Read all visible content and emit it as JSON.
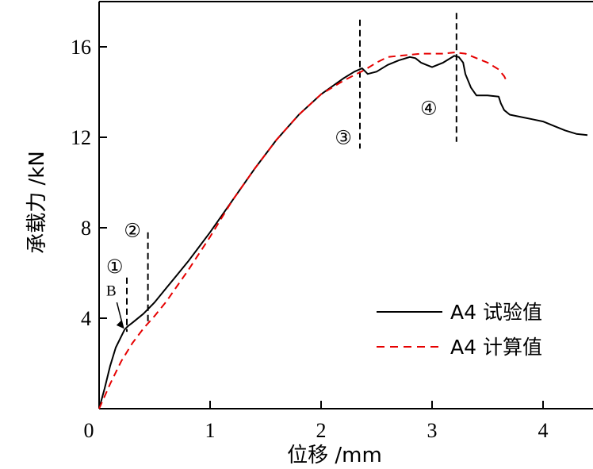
{
  "chart_data": {
    "type": "line",
    "title": "",
    "xlabel": "位移 /mm",
    "ylabel": "承载力 /kN",
    "xlim": [
      0,
      4.45
    ],
    "ylim": [
      0,
      18
    ],
    "xticks": [
      0,
      1,
      2,
      3,
      4
    ],
    "yticks": [
      4,
      8,
      12,
      16
    ],
    "legend_position": "bottom-right",
    "series": [
      {
        "name": "A4 试验值",
        "color": "#000000",
        "style": "solid",
        "x": [
          0,
          0.05,
          0.1,
          0.15,
          0.2,
          0.23,
          0.26,
          0.3,
          0.4,
          0.5,
          0.6,
          0.7,
          0.8,
          1.0,
          1.2,
          1.4,
          1.6,
          1.8,
          2.0,
          2.2,
          2.3,
          2.37,
          2.42,
          2.5,
          2.6,
          2.7,
          2.8,
          2.85,
          2.9,
          2.95,
          3.0,
          3.1,
          3.2,
          3.24,
          3.28,
          3.3,
          3.35,
          3.4,
          3.5,
          3.6,
          3.62,
          3.65,
          3.7,
          3.8,
          3.9,
          4.0,
          4.1,
          4.2,
          4.3,
          4.4
        ],
        "y": [
          0,
          0.9,
          1.9,
          2.7,
          3.2,
          3.5,
          3.65,
          3.8,
          4.2,
          4.7,
          5.3,
          5.9,
          6.5,
          7.8,
          9.2,
          10.6,
          11.9,
          13.0,
          13.9,
          14.6,
          14.9,
          15.05,
          14.8,
          14.9,
          15.2,
          15.4,
          15.55,
          15.5,
          15.3,
          15.2,
          15.1,
          15.3,
          15.6,
          15.55,
          15.3,
          14.8,
          14.2,
          13.85,
          13.85,
          13.8,
          13.5,
          13.2,
          13.0,
          12.9,
          12.8,
          12.7,
          12.5,
          12.3,
          12.15,
          12.1
        ]
      },
      {
        "name": "A4 计算值",
        "color": "#e60000",
        "style": "dashed",
        "x": [
          0,
          0.1,
          0.2,
          0.3,
          0.4,
          0.5,
          0.6,
          0.8,
          1.0,
          1.2,
          1.4,
          1.6,
          1.8,
          2.0,
          2.2,
          2.4,
          2.5,
          2.6,
          2.7,
          2.8,
          2.9,
          3.0,
          3.1,
          3.2,
          3.3,
          3.4,
          3.5,
          3.6,
          3.65,
          3.68
        ],
        "y": [
          0,
          1.1,
          2.1,
          2.9,
          3.55,
          4.1,
          4.7,
          6.1,
          7.6,
          9.2,
          10.6,
          11.9,
          13.0,
          13.9,
          14.5,
          15.0,
          15.3,
          15.55,
          15.6,
          15.65,
          15.7,
          15.7,
          15.7,
          15.75,
          15.7,
          15.5,
          15.3,
          15.0,
          14.7,
          14.4
        ]
      }
    ],
    "annotations": [
      {
        "label": "①",
        "x": 0.14,
        "y": 6.0
      },
      {
        "label": "②",
        "x": 0.3,
        "y": 7.6
      },
      {
        "label": "③",
        "x": 2.2,
        "y": 11.7
      },
      {
        "label": "④",
        "x": 2.97,
        "y": 13.0
      },
      {
        "label": "B",
        "x": 0.11,
        "y": 5.0
      }
    ],
    "dividers": [
      {
        "x": 0.25,
        "y_from": 3.4,
        "y_to": 5.8
      },
      {
        "x": 0.44,
        "y_from": 3.7,
        "y_to": 7.8
      },
      {
        "x": 2.35,
        "y_from": 11.5,
        "y_to": 17.2
      },
      {
        "x": 3.22,
        "y_from": 11.8,
        "y_to": 17.5
      }
    ]
  }
}
